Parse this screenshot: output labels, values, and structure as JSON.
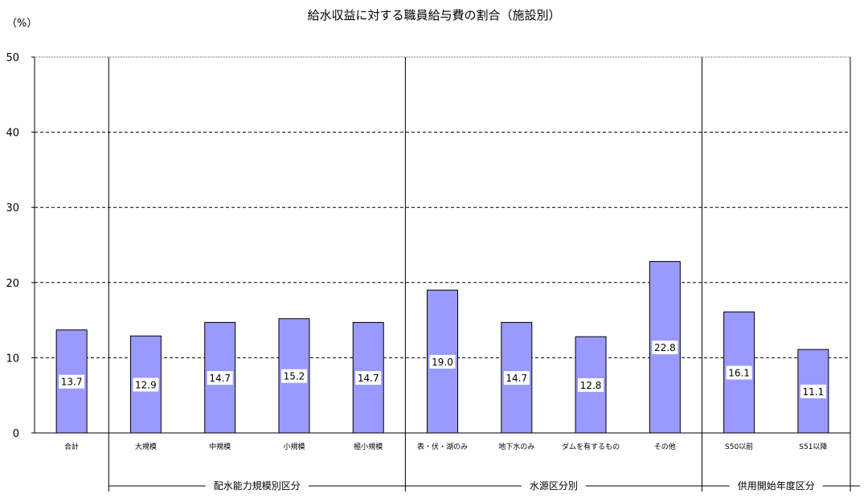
{
  "chart_data": {
    "type": "bar",
    "title": "給水収益に対する職員給与費の割合（施設別）",
    "unit_label": "（%）",
    "ylim": [
      0,
      50
    ],
    "yticks": [
      0,
      10,
      20,
      30,
      40,
      50
    ],
    "grid": "dashed horizontal",
    "categories": [
      "合計",
      "大規模",
      "中規模",
      "小規模",
      "極小規模",
      "表・伏・湖のみ",
      "地下水のみ",
      "ダムを有するもの",
      "その他",
      "S50以前",
      "S51以降"
    ],
    "values": [
      13.7,
      12.9,
      14.7,
      15.2,
      14.7,
      19.0,
      14.7,
      12.8,
      22.8,
      16.1,
      11.1
    ],
    "value_labels": [
      "13.7",
      "12.9",
      "14.7",
      "15.2",
      "14.7",
      "19.0",
      "14.7",
      "12.8",
      "22.8",
      "16.1",
      "11.1"
    ],
    "groups": [
      {
        "label": "配水能力規模別区分",
        "categories": [
          "大規模",
          "中規模",
          "小規模",
          "極小規模"
        ]
      },
      {
        "label": "水源区分別",
        "categories": [
          "表・伏・湖のみ",
          "地下水のみ",
          "ダムを有するもの",
          "その他"
        ]
      },
      {
        "label": "供用開始年度区分",
        "categories": [
          "S50以前",
          "S51以降"
        ]
      }
    ],
    "colors": {
      "bar_fill": "#9999ff",
      "bar_stroke": "#000000",
      "grid": "#000000"
    }
  }
}
